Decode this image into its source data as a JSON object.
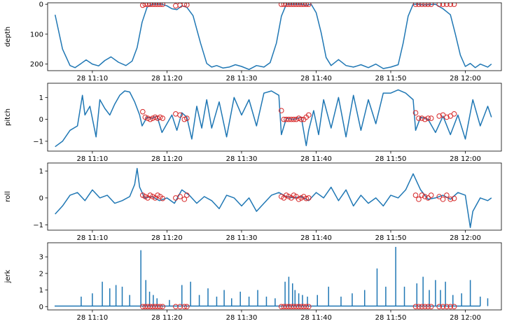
{
  "figure": {
    "background": "#ffffff",
    "line_color": "#1f77b4",
    "marker_color": "#d62728"
  },
  "chart_data": [
    {
      "type": "line",
      "ylabel": "depth",
      "inverted_y": true,
      "ylim": [
        222,
        -5
      ],
      "yticks": [
        0,
        100,
        200
      ],
      "ytick_labels": [
        "0",
        "100",
        "200"
      ],
      "xlim": [
        "11:04:00",
        "12:04:50"
      ],
      "xticks": [
        "11:10",
        "11:20",
        "11:30",
        "11:40",
        "11:50",
        "12:00"
      ],
      "xtick_labels": [
        "28 11:10",
        "28 11:20",
        "28 11:30",
        "28 11:40",
        "28 11:50",
        "28 12:00"
      ],
      "series": [
        {
          "x": [
            "11:05:00",
            "11:06:00",
            "11:07:00",
            "11:07:40",
            "11:08:30",
            "11:09:10",
            "11:10:00",
            "11:10:50",
            "11:11:40",
            "11:12:30",
            "11:13:30",
            "11:14:30",
            "11:15:20",
            "11:16:00",
            "11:16:40",
            "11:17:20",
            "11:18:00",
            "11:18:40",
            "11:19:20",
            "11:20:00",
            "11:20:40",
            "11:21:20",
            "11:22:00",
            "11:22:40",
            "11:23:30",
            "11:24:30",
            "11:25:20",
            "11:26:00",
            "11:26:40",
            "11:27:30",
            "11:28:20",
            "11:29:10",
            "11:30:00",
            "11:31:00",
            "11:32:00",
            "11:33:00",
            "11:33:50",
            "11:34:40",
            "11:35:20",
            "11:36:00",
            "11:37:00",
            "11:38:00",
            "11:38:40",
            "11:39:20",
            "11:40:00",
            "11:40:40",
            "11:41:20",
            "11:42:00",
            "11:43:00",
            "11:44:00",
            "11:45:00",
            "11:46:00",
            "11:47:00",
            "11:48:00",
            "11:49:00",
            "11:50:00",
            "11:51:00",
            "11:51:40",
            "11:52:20",
            "11:53:00",
            "11:53:40",
            "11:54:20",
            "11:55:00",
            "11:56:00",
            "11:57:00",
            "11:58:00",
            "11:58:40",
            "11:59:20",
            "12:00:00",
            "12:00:40",
            "12:01:20",
            "12:02:00",
            "12:03:00",
            "12:03:30"
          ],
          "y": [
            35,
            150,
            205,
            212,
            198,
            186,
            200,
            206,
            188,
            176,
            194,
            205,
            190,
            145,
            60,
            10,
            0,
            0,
            0,
            5,
            15,
            18,
            5,
            10,
            38,
            130,
            198,
            210,
            205,
            213,
            210,
            202,
            208,
            218,
            205,
            210,
            195,
            130,
            40,
            0,
            0,
            0,
            3,
            0,
            28,
            95,
            178,
            205,
            185,
            205,
            210,
            202,
            212,
            200,
            215,
            210,
            202,
            130,
            40,
            0,
            0,
            2,
            1,
            0,
            15,
            35,
            100,
            170,
            208,
            198,
            212,
            200,
            210,
            200
          ]
        }
      ],
      "markers": {
        "x": [
          "11:16:45",
          "11:17:05",
          "11:17:25",
          "11:17:45",
          "11:18:05",
          "11:18:25",
          "11:18:45",
          "11:19:05",
          "11:19:25",
          "11:21:10",
          "11:21:45",
          "11:22:20",
          "11:22:40",
          "11:35:20",
          "11:35:40",
          "11:36:00",
          "11:36:20",
          "11:36:40",
          "11:37:00",
          "11:37:20",
          "11:37:40",
          "11:38:00",
          "11:38:20",
          "11:38:40",
          "11:39:00",
          "11:53:20",
          "11:53:45",
          "11:54:10",
          "11:54:35",
          "11:55:00",
          "11:55:25",
          "11:56:30",
          "11:57:00",
          "11:57:30",
          "11:58:00",
          "11:58:30"
        ],
        "y": [
          3,
          0,
          0,
          0,
          0,
          0,
          0,
          0,
          0,
          5,
          3,
          0,
          2,
          0,
          0,
          0,
          0,
          0,
          0,
          0,
          0,
          0,
          0,
          0,
          0,
          0,
          0,
          0,
          0,
          0,
          0,
          0,
          0,
          0,
          0,
          0
        ]
      }
    },
    {
      "type": "line",
      "ylabel": "pitch",
      "inverted_y": false,
      "ylim": [
        -1.45,
        1.65
      ],
      "yticks": [
        -1,
        0,
        1
      ],
      "ytick_labels": [
        "−1",
        "0",
        "1"
      ],
      "xlim": [
        "11:04:00",
        "12:04:50"
      ],
      "xticks": [
        "11:10",
        "11:20",
        "11:30",
        "11:40",
        "11:50",
        "12:00"
      ],
      "xtick_labels": [
        "28 11:10",
        "28 11:20",
        "28 11:30",
        "28 11:40",
        "28 11:50",
        "28 12:00"
      ],
      "series": [
        {
          "x": [
            "11:05:00",
            "11:06:00",
            "11:07:00",
            "11:08:00",
            "11:08:40",
            "11:09:00",
            "11:09:40",
            "11:10:30",
            "11:11:00",
            "11:11:40",
            "11:12:20",
            "11:13:00",
            "11:13:40",
            "11:14:20",
            "11:15:00",
            "11:15:40",
            "11:16:20",
            "11:16:40",
            "11:17:20",
            "11:18:00",
            "11:18:40",
            "11:19:20",
            "11:20:00",
            "11:20:40",
            "11:21:20",
            "11:22:00",
            "11:22:40",
            "11:23:20",
            "11:24:00",
            "11:24:40",
            "11:25:20",
            "11:26:00",
            "11:27:00",
            "11:28:00",
            "11:29:00",
            "11:30:00",
            "11:31:00",
            "11:32:00",
            "11:33:00",
            "11:34:00",
            "11:35:00",
            "11:35:20",
            "11:36:00",
            "11:37:00",
            "11:38:00",
            "11:38:40",
            "11:39:00",
            "11:39:40",
            "11:40:20",
            "11:41:00",
            "11:42:00",
            "11:43:00",
            "11:44:00",
            "11:45:00",
            "11:46:00",
            "11:47:00",
            "11:48:00",
            "11:49:00",
            "11:50:00",
            "11:51:00",
            "11:52:00",
            "11:53:00",
            "11:53:20",
            "11:54:00",
            "11:55:00",
            "11:56:00",
            "11:57:00",
            "11:58:00",
            "11:59:00",
            "12:00:00",
            "12:01:00",
            "12:02:00",
            "12:03:00",
            "12:03:30"
          ],
          "y": [
            -1.25,
            -1.0,
            -0.5,
            -0.3,
            1.1,
            0.2,
            0.6,
            -0.8,
            0.9,
            0.5,
            0.2,
            0.7,
            1.1,
            1.3,
            1.25,
            0.8,
            0.2,
            -0.3,
            0.1,
            0.05,
            0.15,
            -0.6,
            -0.2,
            0.2,
            -0.5,
            0.3,
            0.1,
            -0.9,
            0.6,
            -0.4,
            0.9,
            -0.4,
            0.8,
            -0.8,
            1.0,
            0.2,
            0.9,
            -0.3,
            1.2,
            1.3,
            1.1,
            -0.7,
            0.05,
            0.0,
            0.1,
            -1.2,
            -0.5,
            0.4,
            -0.7,
            0.9,
            -0.4,
            1.0,
            -0.8,
            1.1,
            -0.5,
            0.9,
            -0.2,
            1.2,
            1.2,
            1.35,
            1.2,
            0.9,
            -0.5,
            0.1,
            0.0,
            -0.6,
            0.15,
            -0.7,
            0.2,
            -0.9,
            0.9,
            -0.3,
            0.6,
            0.1
          ]
        }
      ],
      "markers": {
        "x": [
          "11:16:45",
          "11:17:05",
          "11:17:25",
          "11:17:45",
          "11:18:05",
          "11:18:25",
          "11:18:45",
          "11:19:05",
          "11:19:25",
          "11:21:10",
          "11:21:45",
          "11:22:20",
          "11:22:40",
          "11:35:20",
          "11:35:40",
          "11:36:00",
          "11:36:20",
          "11:36:40",
          "11:37:00",
          "11:37:20",
          "11:37:40",
          "11:38:00",
          "11:38:20",
          "11:38:40",
          "11:39:00",
          "11:53:20",
          "11:53:45",
          "11:54:10",
          "11:54:35",
          "11:55:00",
          "11:55:25",
          "11:56:30",
          "11:57:00",
          "11:57:30",
          "11:58:00",
          "11:58:30"
        ],
        "y": [
          0.35,
          0.1,
          0.05,
          0.0,
          0.05,
          0.1,
          0.05,
          0.1,
          0.05,
          0.25,
          0.2,
          0.0,
          0.05,
          0.4,
          0.0,
          0.0,
          0.0,
          0.0,
          0.0,
          0.0,
          0.05,
          0.0,
          0.0,
          0.1,
          0.2,
          0.3,
          0.05,
          0.05,
          0.0,
          0.05,
          0.05,
          0.15,
          0.2,
          0.1,
          0.15,
          0.25
        ]
      }
    },
    {
      "type": "line",
      "ylabel": "roll",
      "inverted_y": false,
      "ylim": [
        -1.2,
        1.3
      ],
      "yticks": [
        -1,
        0,
        1
      ],
      "ytick_labels": [
        "−1",
        "0",
        "1"
      ],
      "xlim": [
        "11:04:00",
        "12:04:50"
      ],
      "xticks": [
        "11:10",
        "11:20",
        "11:30",
        "11:40",
        "11:50",
        "12:00"
      ],
      "xtick_labels": [
        "28 11:10",
        "28 11:20",
        "28 11:30",
        "28 11:40",
        "28 11:50",
        "28 12:00"
      ],
      "series": [
        {
          "x": [
            "11:05:00",
            "11:06:00",
            "11:07:00",
            "11:08:00",
            "11:09:00",
            "11:10:00",
            "11:11:00",
            "11:12:00",
            "11:13:00",
            "11:14:00",
            "11:15:00",
            "11:15:40",
            "11:16:00",
            "11:16:20",
            "11:17:00",
            "11:18:00",
            "11:19:00",
            "11:20:00",
            "11:21:00",
            "11:22:00",
            "11:23:00",
            "11:24:00",
            "11:25:00",
            "11:26:00",
            "11:27:00",
            "11:28:00",
            "11:29:00",
            "11:30:00",
            "11:31:00",
            "11:32:00",
            "11:33:00",
            "11:34:00",
            "11:35:00",
            "11:36:00",
            "11:37:00",
            "11:38:00",
            "11:39:00",
            "11:40:00",
            "11:41:00",
            "11:42:00",
            "11:43:00",
            "11:44:00",
            "11:45:00",
            "11:46:00",
            "11:47:00",
            "11:48:00",
            "11:49:00",
            "11:50:00",
            "11:51:00",
            "11:52:00",
            "11:53:00",
            "11:54:00",
            "11:55:00",
            "11:56:00",
            "11:57:00",
            "11:58:00",
            "11:59:00",
            "12:00:00",
            "12:00:40",
            "12:01:00",
            "12:02:00",
            "12:03:00",
            "12:03:30"
          ],
          "y": [
            -0.6,
            -0.3,
            0.1,
            0.2,
            -0.1,
            0.3,
            0.0,
            0.1,
            -0.2,
            -0.1,
            0.05,
            0.5,
            1.1,
            0.4,
            0.0,
            0.05,
            -0.1,
            0.0,
            -0.2,
            0.3,
            0.1,
            -0.2,
            0.05,
            -0.1,
            -0.4,
            0.1,
            0.0,
            -0.3,
            0.0,
            -0.5,
            -0.2,
            0.1,
            0.2,
            0.05,
            0.0,
            0.05,
            -0.1,
            0.2,
            0.0,
            0.4,
            -0.1,
            0.3,
            -0.3,
            0.1,
            -0.2,
            0.0,
            -0.3,
            0.1,
            0.0,
            0.3,
            0.9,
            0.3,
            -0.05,
            0.0,
            0.1,
            -0.05,
            0.2,
            0.1,
            -1.1,
            -0.5,
            0.0,
            -0.1,
            0.0
          ]
        }
      ],
      "markers": {
        "x": [
          "11:16:45",
          "11:17:05",
          "11:17:25",
          "11:17:45",
          "11:18:05",
          "11:18:25",
          "11:18:45",
          "11:19:05",
          "11:19:25",
          "11:21:10",
          "11:21:45",
          "11:22:20",
          "11:22:40",
          "11:35:20",
          "11:35:40",
          "11:36:00",
          "11:36:20",
          "11:36:40",
          "11:37:00",
          "11:37:20",
          "11:37:40",
          "11:38:00",
          "11:38:20",
          "11:38:40",
          "11:39:00",
          "11:53:20",
          "11:53:45",
          "11:54:10",
          "11:54:35",
          "11:55:00",
          "11:55:25",
          "11:56:30",
          "11:57:00",
          "11:57:30",
          "11:58:00",
          "11:58:30"
        ],
        "y": [
          0.1,
          0.05,
          0.0,
          0.1,
          0.05,
          0.0,
          0.1,
          0.05,
          -0.02,
          0.0,
          0.05,
          -0.05,
          0.1,
          0.05,
          0.0,
          0.1,
          0.05,
          0.0,
          0.1,
          0.05,
          -0.05,
          0.0,
          0.05,
          -0.02,
          0.0,
          0.1,
          -0.05,
          0.1,
          0.05,
          0.0,
          0.1,
          0.05,
          -0.05,
          0.1,
          -0.05,
          -0.02
        ]
      }
    },
    {
      "type": "line",
      "ylabel": "jerk",
      "inverted_y": false,
      "ylim": [
        -0.2,
        3.85
      ],
      "yticks": [
        0,
        1,
        2,
        3
      ],
      "ytick_labels": [
        "0",
        "1",
        "2",
        "3"
      ],
      "xlim": [
        "11:04:00",
        "12:04:50"
      ],
      "xticks": [
        "11:10",
        "11:20",
        "11:30",
        "11:40",
        "11:50",
        "12:00"
      ],
      "xtick_labels": [
        "28 11:10",
        "28 11:20",
        "28 11:30",
        "28 11:40",
        "28 11:50",
        "28 12:00"
      ],
      "spikes": {
        "x": [
          "11:08:30",
          "11:10:00",
          "11:11:20",
          "11:12:20",
          "11:13:10",
          "11:14:00",
          "11:15:00",
          "11:16:30",
          "11:17:10",
          "11:17:40",
          "11:18:10",
          "11:18:40",
          "11:20:20",
          "11:22:00",
          "11:23:10",
          "11:24:20",
          "11:25:30",
          "11:26:40",
          "11:27:40",
          "11:28:40",
          "11:29:50",
          "11:31:00",
          "11:32:10",
          "11:33:20",
          "11:34:30",
          "11:35:50",
          "11:36:20",
          "11:36:50",
          "11:37:10",
          "11:37:40",
          "11:38:10",
          "11:38:50",
          "11:40:10",
          "11:41:40",
          "11:43:20",
          "11:44:50",
          "11:46:30",
          "11:48:10",
          "11:49:20",
          "11:50:40",
          "11:51:50",
          "11:53:30",
          "11:54:20",
          "11:55:10",
          "11:56:00",
          "11:56:40",
          "11:57:20",
          "11:58:20",
          "11:59:30",
          "12:00:40",
          "12:02:00",
          "12:03:00"
        ],
        "y": [
          0.6,
          0.8,
          1.5,
          1.1,
          1.3,
          1.2,
          0.7,
          3.4,
          1.6,
          0.9,
          0.7,
          0.5,
          0.4,
          1.3,
          1.5,
          0.7,
          1.1,
          0.6,
          1.0,
          0.5,
          0.9,
          0.6,
          1.0,
          0.6,
          0.5,
          1.5,
          1.8,
          1.4,
          1.0,
          0.8,
          0.7,
          0.6,
          0.7,
          1.2,
          0.6,
          0.8,
          1.0,
          2.3,
          1.2,
          3.6,
          1.2,
          1.4,
          1.8,
          1.0,
          1.6,
          1.0,
          1.5,
          0.7,
          0.8,
          1.6,
          0.6,
          0.5
        ]
      },
      "baseline": 0.03,
      "markers": {
        "x": [
          "11:16:45",
          "11:17:05",
          "11:17:25",
          "11:17:45",
          "11:18:05",
          "11:18:25",
          "11:18:45",
          "11:19:05",
          "11:19:25",
          "11:21:10",
          "11:21:45",
          "11:22:20",
          "11:22:40",
          "11:35:20",
          "11:35:40",
          "11:36:00",
          "11:36:20",
          "11:36:40",
          "11:37:00",
          "11:37:20",
          "11:37:40",
          "11:38:00",
          "11:38:20",
          "11:38:40",
          "11:39:00",
          "11:53:20",
          "11:53:45",
          "11:54:10",
          "11:54:35",
          "11:55:00",
          "11:55:25",
          "11:56:30",
          "11:57:00",
          "11:57:30",
          "11:58:00",
          "11:58:30"
        ],
        "y": [
          0,
          0,
          0,
          0,
          0,
          0,
          0,
          0,
          0,
          0,
          0,
          0,
          0,
          0,
          0,
          0,
          0,
          0,
          0,
          0,
          0,
          0,
          0,
          0,
          0,
          0,
          0,
          0,
          0,
          0,
          0,
          0,
          0,
          0,
          0,
          0
        ]
      }
    }
  ]
}
